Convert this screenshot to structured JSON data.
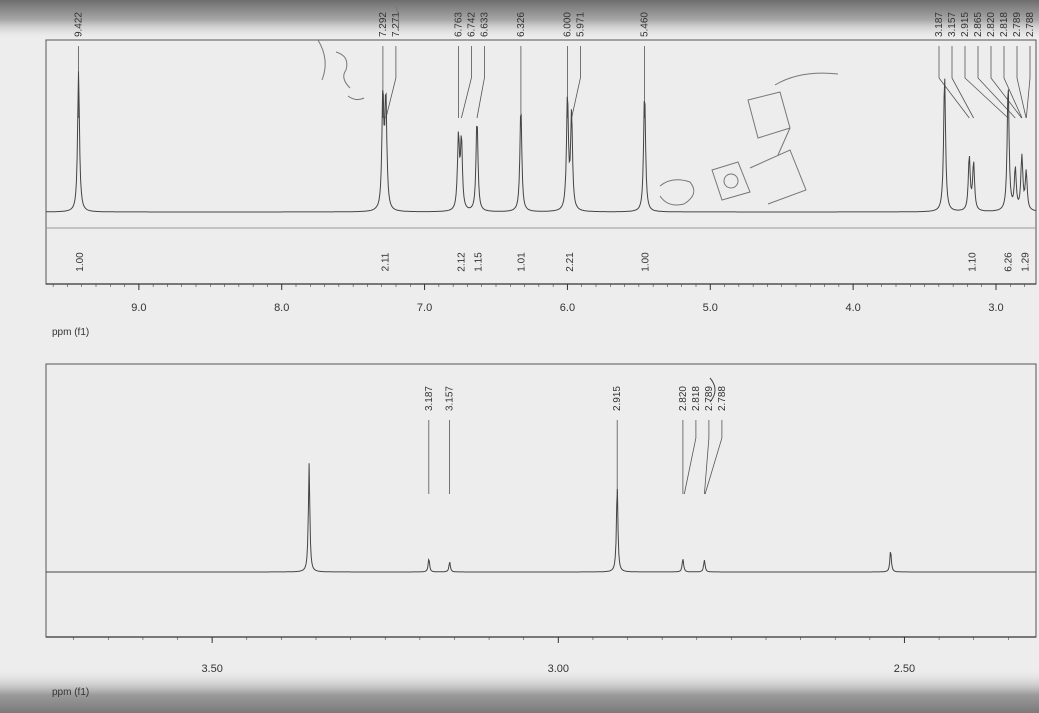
{
  "chart_data": [
    {
      "type": "line",
      "xlabel": "ppm (f1)",
      "xlim": [
        9.65,
        2.72
      ],
      "ticks": [
        9.0,
        8.0,
        7.0,
        6.0,
        5.0,
        4.0,
        3.0
      ],
      "tick_labels": [
        "9.0",
        "8.0",
        "7.0",
        "6.0",
        "5.0",
        "4.0",
        "3.0"
      ],
      "peaks": [
        {
          "x": 9.422,
          "label": "9.422",
          "height": 0.88
        },
        {
          "x": 7.292,
          "label": "7.292",
          "height": 0.72
        },
        {
          "x": 7.271,
          "label": "7.271",
          "height": 0.7
        },
        {
          "x": 6.763,
          "label": "6.763",
          "height": 0.46
        },
        {
          "x": 6.742,
          "label": "6.742",
          "height": 0.44
        },
        {
          "x": 6.633,
          "label": "6.633",
          "height": 0.58
        },
        {
          "x": 6.326,
          "label": "6.326",
          "height": 0.66
        },
        {
          "x": 6.0,
          "label": "6.000",
          "height": 0.72
        },
        {
          "x": 5.971,
          "label": "5.971",
          "height": 0.6
        },
        {
          "x": 5.46,
          "label": "5.460",
          "height": 0.75
        },
        {
          "x": 3.187,
          "label": "3.187",
          "height": 0.34
        },
        {
          "x": 3.157,
          "label": "3.157",
          "height": 0.3
        },
        {
          "x": 2.915,
          "label": "2.915",
          "height": 0.8
        },
        {
          "x": 2.865,
          "label": "2.865",
          "height": 0.26
        },
        {
          "x": 2.82,
          "label": "2.820",
          "height": 0.18
        },
        {
          "x": 2.818,
          "label": "2.818",
          "height": 0.16
        },
        {
          "x": 2.789,
          "label": "2.789",
          "height": 0.12
        },
        {
          "x": 2.788,
          "label": "2.788",
          "height": 0.12
        }
      ],
      "extra_peaks": [
        {
          "x": 3.36,
          "height": 0.86
        },
        {
          "x": 2.52,
          "height": 0.88
        }
      ],
      "integrals": [
        {
          "x": 9.42,
          "value": "1.00"
        },
        {
          "x": 7.28,
          "value": "2.11"
        },
        {
          "x": 6.75,
          "value": "2.12"
        },
        {
          "x": 6.63,
          "value": "1.15"
        },
        {
          "x": 6.33,
          "value": "1.01"
        },
        {
          "x": 5.99,
          "value": "2.21"
        },
        {
          "x": 5.46,
          "value": "1.00"
        },
        {
          "x": 3.17,
          "value": "1.10"
        },
        {
          "x": 2.92,
          "value": "6.26"
        },
        {
          "x": 2.8,
          "value": "1.29"
        }
      ]
    },
    {
      "type": "line",
      "xlabel": "ppm (f1)",
      "xlim": [
        3.74,
        2.31
      ],
      "ticks": [
        3.5,
        3.0,
        2.5
      ],
      "tick_labels": [
        "3.50",
        "3.00",
        "2.50"
      ],
      "peaks": [
        {
          "x": 3.187,
          "label": "3.187",
          "height": 0.08
        },
        {
          "x": 3.157,
          "label": "3.157",
          "height": 0.06
        },
        {
          "x": 2.915,
          "label": "2.915",
          "height": 0.52
        },
        {
          "x": 2.82,
          "label": "2.820",
          "height": 0.08
        },
        {
          "x": 2.818,
          "label": "2.818",
          "height": 0.0
        },
        {
          "x": 2.789,
          "label": "2.789",
          "height": 0.07
        },
        {
          "x": 2.788,
          "label": "2.788",
          "height": 0.0
        }
      ],
      "extra_peaks": [
        {
          "x": 3.36,
          "height": 0.64
        },
        {
          "x": 2.52,
          "height": 0.13
        }
      ]
    }
  ]
}
